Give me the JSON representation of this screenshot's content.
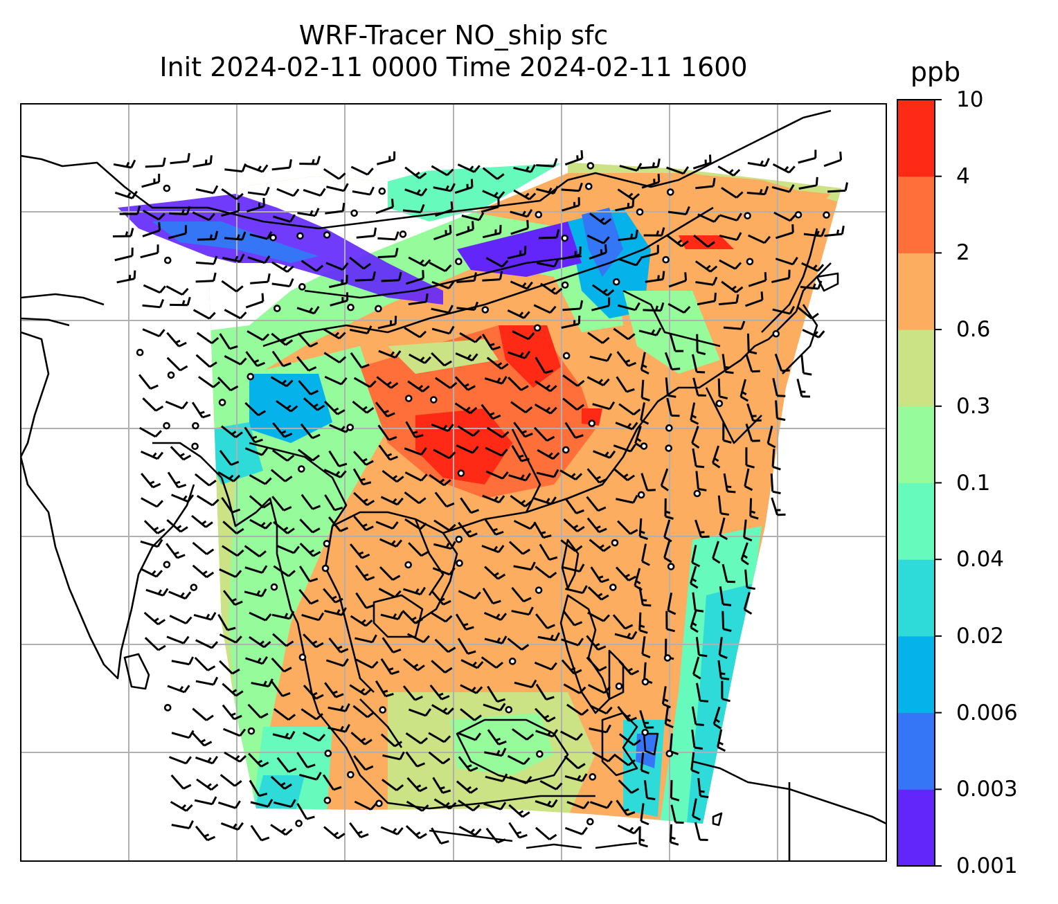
{
  "title": {
    "line1": "WRF-Tracer NO_ship sfc",
    "line2": "Init 2024-02-11 0000 Time 2024-02-11 1600"
  },
  "colorbar": {
    "unit": "ppb",
    "levels": [
      "0.001",
      "0.003",
      "0.006",
      "0.02",
      "0.04",
      "0.1",
      "0.3",
      "0.6",
      "2",
      "4",
      "10"
    ],
    "colors": [
      "#6226fb",
      "#3576f6",
      "#06b2ea",
      "#2fdbd9",
      "#66fabd",
      "#95fb9b",
      "#cbe285",
      "#fdad60",
      "#fe6f39",
      "#ff2a15"
    ]
  },
  "map": {
    "features": [
      "coastlines",
      "country-borders",
      "lat-lon-gridlines",
      "wind-barbs",
      "calm-circles"
    ],
    "gridline_color": "#b0b0b0",
    "line_color": "#000000"
  }
}
